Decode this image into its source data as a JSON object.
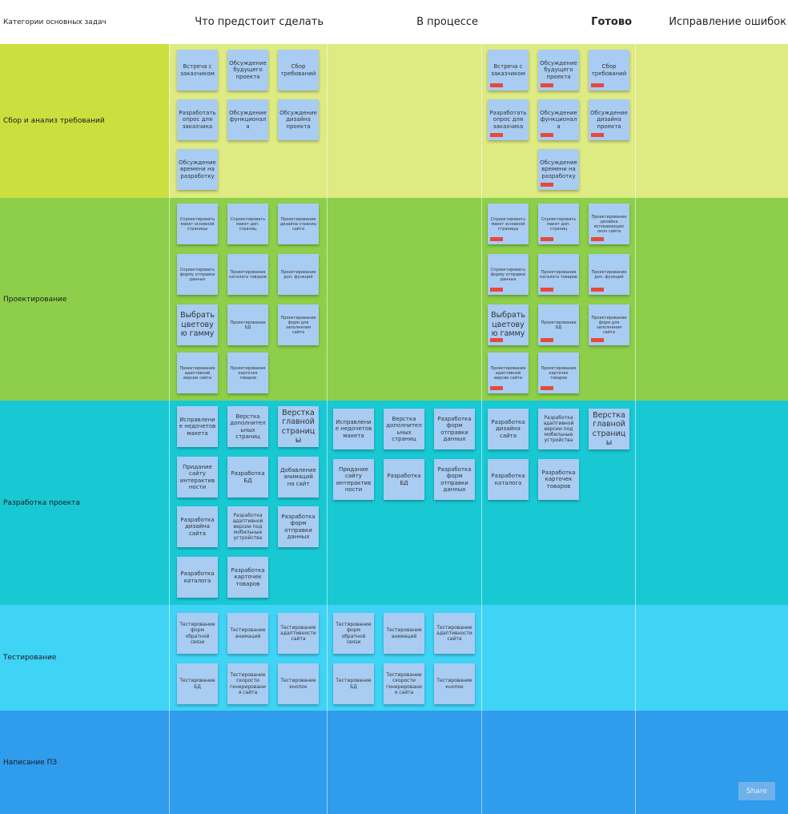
{
  "header": {
    "categories_title": "Категории основных задач",
    "col_todo": "Что предстоит сделать",
    "col_progress": "В процессе",
    "col_done": "Готово",
    "col_fix": "Исправление ошибок"
  },
  "lanes": {
    "requirements": {
      "label": "Сбор и анализ требований",
      "color": "#ccdf3f"
    },
    "design": {
      "label": "Проектирование",
      "color": "#8dcf4a"
    },
    "development": {
      "label": "Разработка проекта",
      "color": "#18c9d4"
    },
    "testing": {
      "label": "Тестирование",
      "color": "#3fd3f6"
    },
    "docs": {
      "label": "Написание ПЗ",
      "color": "#2f9cec"
    }
  },
  "notes": {
    "req_todo": [
      "Встреча с заказчиком",
      "Обсуждение будущего проекта",
      "Сбор требований",
      "Разработать опрос для заказчика",
      "Обсуждение функционала",
      "Обсуждение дизайна проекта",
      "Обсуждение времени на разработку"
    ],
    "req_done": [
      "Встреча с заказчиком",
      "Обсуждение будущего проекта",
      "Сбор требований",
      "Разработать опрос для заказчика",
      "Обсуждение функционала",
      "Обсуждение дизайна проекта",
      "Обсуждение времени на разработку"
    ],
    "des_todo": [
      "Спроектировать макет основной страницы",
      "Спроектировать макет доп. страниц",
      "Проектирование дизайна страниц сайта",
      "Спроектировать форму отправки данных",
      "Проектирование каталога товаров",
      "Проектирование доп. функций",
      "Выбрать цветовую гамму",
      "Проектирование БД",
      "Проектирование форм для заполнения сайта",
      "Проектирование адаптивной версии сайта",
      "Проектирование карточек товаров"
    ],
    "des_done": [
      "Спроектировать макет основной страницы",
      "Спроектировать макет доп. страниц",
      "Проектирование дизайна всплывающих окон сайта",
      "Спроектировать форму отправки данных",
      "Проектирование каталога товаров",
      "Проектирование доп. функций",
      "Выбрать цветовую гамму",
      "Проектирование БД",
      "Проектирование форм для заполнения сайта",
      "Проектирование адаптивной версии сайта",
      "Проектирование карточек товаров"
    ],
    "dev_todo": [
      "Исправление недочетов макета",
      "Верстка дополнительных страниц",
      "Верстка главной страницы",
      "Придание сайту интерактивности",
      "Разработка БД",
      "Добавление анимаций на сайт",
      "Разработка дизайна сайта",
      "Разработка адаптивной версии под мобильные устройства",
      "Разработка форм отправки данных",
      "Разработка каталога",
      "Разработка карточек товаров"
    ],
    "dev_progress": [
      "Исправление недочетов макета",
      "Верстка дополнительных страниц",
      "Разработка форм отправки данных",
      "Придание сайту интерактивности",
      "Разработка БД",
      "Разработка форм отправки данных"
    ],
    "dev_done": [
      "Разработка дизайна сайта",
      "Разработка адаптивной версии под мобильные устройства",
      "Верстка главной страницы",
      "Разработка каталога",
      "Разработка карточек товаров"
    ],
    "test_todo": [
      "Тестирование форм обратной связи",
      "Тестирование анимаций",
      "Тестирование адаптивности сайта",
      "Тестирование БД",
      "Тестирование скорости генерирования сайта",
      "Тестирование кнопок"
    ],
    "test_progress": [
      "Тестирование форм обратной связи",
      "Тестирование анимаций",
      "Тестирование адаптивности сайта",
      "Тестирование БД",
      "Тестирование скорости генерирования сайта",
      "Тестирование кнопок"
    ]
  },
  "colors": {
    "note": "#a9ccf2",
    "done_tag": "#e8483a"
  },
  "footer_button_label": "Share"
}
